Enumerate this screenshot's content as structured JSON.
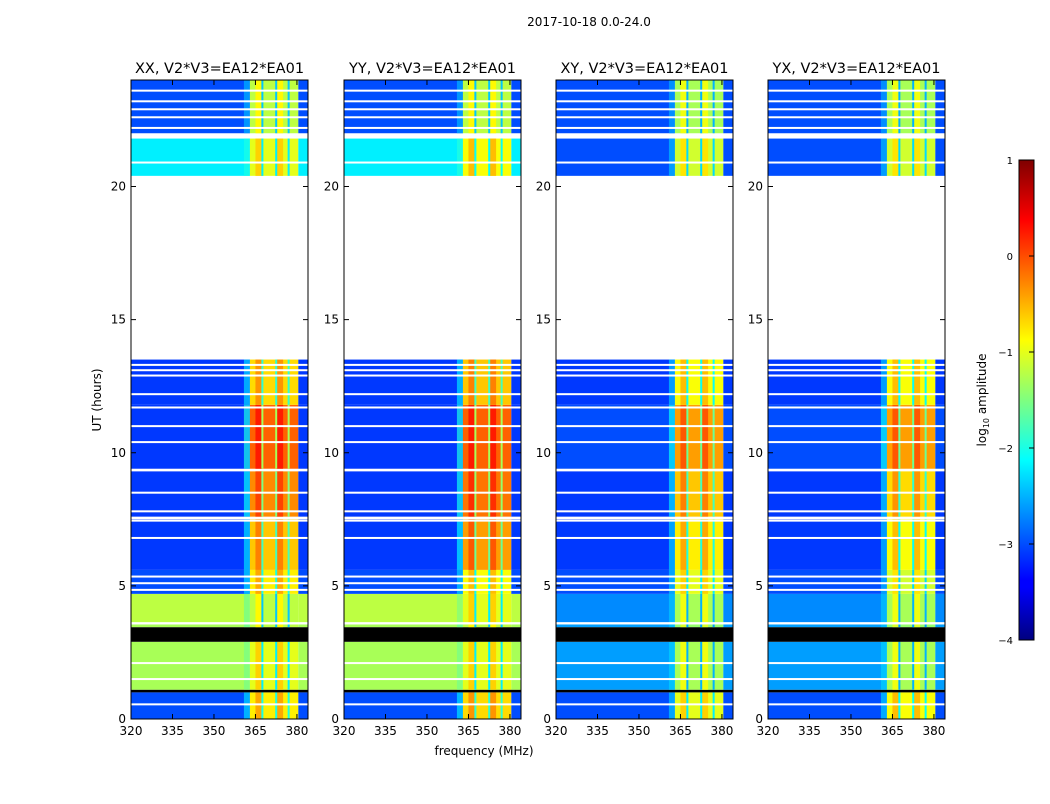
{
  "chart_data": {
    "type": "heatmap",
    "title": "2017-10-18 0.0-24.0",
    "xlabel": "frequency (MHz)",
    "ylabel": "UT (hours)",
    "xlim": [
      320,
      384
    ],
    "ylim": [
      0,
      24
    ],
    "xticks": [
      "320",
      "335",
      "350",
      "365",
      "380"
    ],
    "xtick_values": [
      320,
      335,
      350,
      365,
      380
    ],
    "yticks": [
      "0",
      "5",
      "10",
      "15",
      "20"
    ],
    "ytick_values": [
      0,
      5,
      10,
      15,
      20
    ],
    "rfi_band_mhz": [
      363,
      380.5
    ],
    "rfi_gaps_mhz": [
      367.5,
      372.5,
      377
    ],
    "colorbar": {
      "label": "log10 amplitude",
      "label_main": "log",
      "label_sub": "10",
      "label_rest": " amplitude",
      "range": [
        -4,
        1
      ],
      "ticks": [
        "1",
        "0",
        "−1",
        "−2",
        "−3",
        "−4"
      ],
      "tick_values": [
        1,
        0,
        -1,
        -2,
        -3,
        -4
      ],
      "colormap": "jet"
    },
    "flagged_color": "#000000",
    "panels": [
      {
        "title": "XX, V2*V3=EA12*EA01",
        "segments": [
          [
            0,
            1.0,
            -3.0,
            -0.8
          ],
          [
            1.0,
            1.1,
            null,
            null
          ],
          [
            1.1,
            2.9,
            -1.3,
            -1.0
          ],
          [
            2.9,
            3.45,
            null,
            null
          ],
          [
            3.45,
            3.55,
            -1.3,
            -1.2
          ],
          [
            3.6,
            4.7,
            -1.2,
            -1.2
          ],
          [
            4.7,
            5.6,
            -3.0,
            -0.8
          ],
          [
            5.6,
            7.5,
            -3.1,
            -0.6
          ],
          [
            7.6,
            9.3,
            -3.1,
            -0.3
          ],
          [
            9.4,
            11.8,
            -3.1,
            -0.1
          ],
          [
            11.8,
            13.5,
            -3.1,
            -0.7
          ],
          [
            20.4,
            21.8,
            -2.2,
            -1.0
          ],
          [
            22.0,
            24.0,
            -3.0,
            -1.2
          ]
        ],
        "gaps": [
          0.55,
          1.5,
          2.1,
          3.6,
          4.85,
          5.1,
          5.35,
          6.8,
          7.45,
          7.8,
          8.5,
          10.4,
          11.0,
          11.7,
          12.2,
          12.9,
          13.1,
          13.3,
          20.9,
          21.9,
          22.2,
          22.6,
          22.9,
          23.2,
          23.6
        ]
      },
      {
        "title": "YY, V2*V3=EA12*EA01",
        "segments": [
          [
            0,
            1.0,
            -3.0,
            -0.7
          ],
          [
            1.0,
            1.1,
            null,
            null
          ],
          [
            1.1,
            2.9,
            -1.3,
            -1.0
          ],
          [
            2.9,
            3.45,
            null,
            null
          ],
          [
            3.45,
            3.55,
            -1.3,
            -1.2
          ],
          [
            3.6,
            4.7,
            -1.2,
            -1.0
          ],
          [
            4.7,
            5.6,
            -3.0,
            -0.9
          ],
          [
            5.6,
            7.5,
            -3.1,
            -0.4
          ],
          [
            7.6,
            9.3,
            -3.1,
            -0.2
          ],
          [
            9.4,
            11.8,
            -3.1,
            -0.1
          ],
          [
            11.8,
            13.5,
            -3.1,
            -0.6
          ],
          [
            20.4,
            21.8,
            -2.2,
            -0.9
          ],
          [
            22.0,
            24.0,
            -3.0,
            -1.2
          ]
        ],
        "gaps": [
          0.55,
          1.5,
          2.1,
          3.6,
          4.85,
          5.1,
          5.35,
          6.8,
          7.45,
          7.8,
          8.5,
          10.4,
          11.0,
          11.7,
          12.2,
          12.9,
          13.1,
          13.3,
          20.9,
          21.9,
          22.2,
          22.6,
          22.9,
          23.2,
          23.6
        ]
      },
      {
        "title": "XY, V2*V3=EA12*EA01",
        "segments": [
          [
            0,
            1.0,
            -3.0,
            -1.0
          ],
          [
            1.0,
            1.1,
            null,
            null
          ],
          [
            1.1,
            2.9,
            -2.6,
            -1.3
          ],
          [
            2.9,
            3.45,
            null,
            null
          ],
          [
            3.45,
            3.55,
            -2.6,
            -1.4
          ],
          [
            3.6,
            4.7,
            -2.7,
            -1.3
          ],
          [
            4.7,
            5.6,
            -3.0,
            -1.0
          ],
          [
            5.6,
            7.5,
            -3.1,
            -0.8
          ],
          [
            7.6,
            9.3,
            -3.1,
            -0.6
          ],
          [
            9.4,
            11.8,
            -3.0,
            -0.4
          ],
          [
            11.8,
            13.5,
            -3.1,
            -0.9
          ],
          [
            20.4,
            21.8,
            -3.0,
            -1.1
          ],
          [
            22.0,
            24.0,
            -3.0,
            -1.3
          ]
        ],
        "gaps": [
          0.55,
          1.5,
          2.1,
          3.6,
          4.85,
          5.1,
          5.35,
          6.8,
          7.45,
          7.8,
          8.5,
          10.4,
          11.0,
          11.7,
          12.2,
          12.9,
          13.1,
          13.3,
          20.9,
          21.9,
          22.2,
          22.6,
          22.9,
          23.2,
          23.6
        ]
      },
      {
        "title": "YX, V2*V3=EA12*EA01",
        "segments": [
          [
            0,
            1.0,
            -3.0,
            -0.9
          ],
          [
            1.0,
            1.1,
            null,
            null
          ],
          [
            1.1,
            2.9,
            -2.6,
            -1.3
          ],
          [
            2.9,
            3.45,
            null,
            null
          ],
          [
            3.45,
            3.55,
            -2.6,
            -1.4
          ],
          [
            3.6,
            4.7,
            -2.7,
            -1.3
          ],
          [
            4.7,
            5.6,
            -3.0,
            -1.1
          ],
          [
            5.6,
            7.5,
            -3.1,
            -0.9
          ],
          [
            7.6,
            9.3,
            -3.1,
            -0.7
          ],
          [
            9.4,
            11.8,
            -3.0,
            -0.4
          ],
          [
            11.8,
            13.5,
            -3.1,
            -0.9
          ],
          [
            20.4,
            21.8,
            -3.0,
            -1.1
          ],
          [
            22.0,
            24.0,
            -3.0,
            -1.3
          ]
        ],
        "gaps": [
          0.55,
          1.5,
          2.1,
          3.6,
          4.85,
          5.1,
          5.35,
          6.8,
          7.45,
          7.8,
          8.5,
          10.4,
          11.0,
          11.7,
          12.2,
          12.9,
          13.1,
          13.3,
          20.9,
          21.9,
          22.2,
          22.6,
          22.9,
          23.2,
          23.6
        ]
      }
    ]
  }
}
